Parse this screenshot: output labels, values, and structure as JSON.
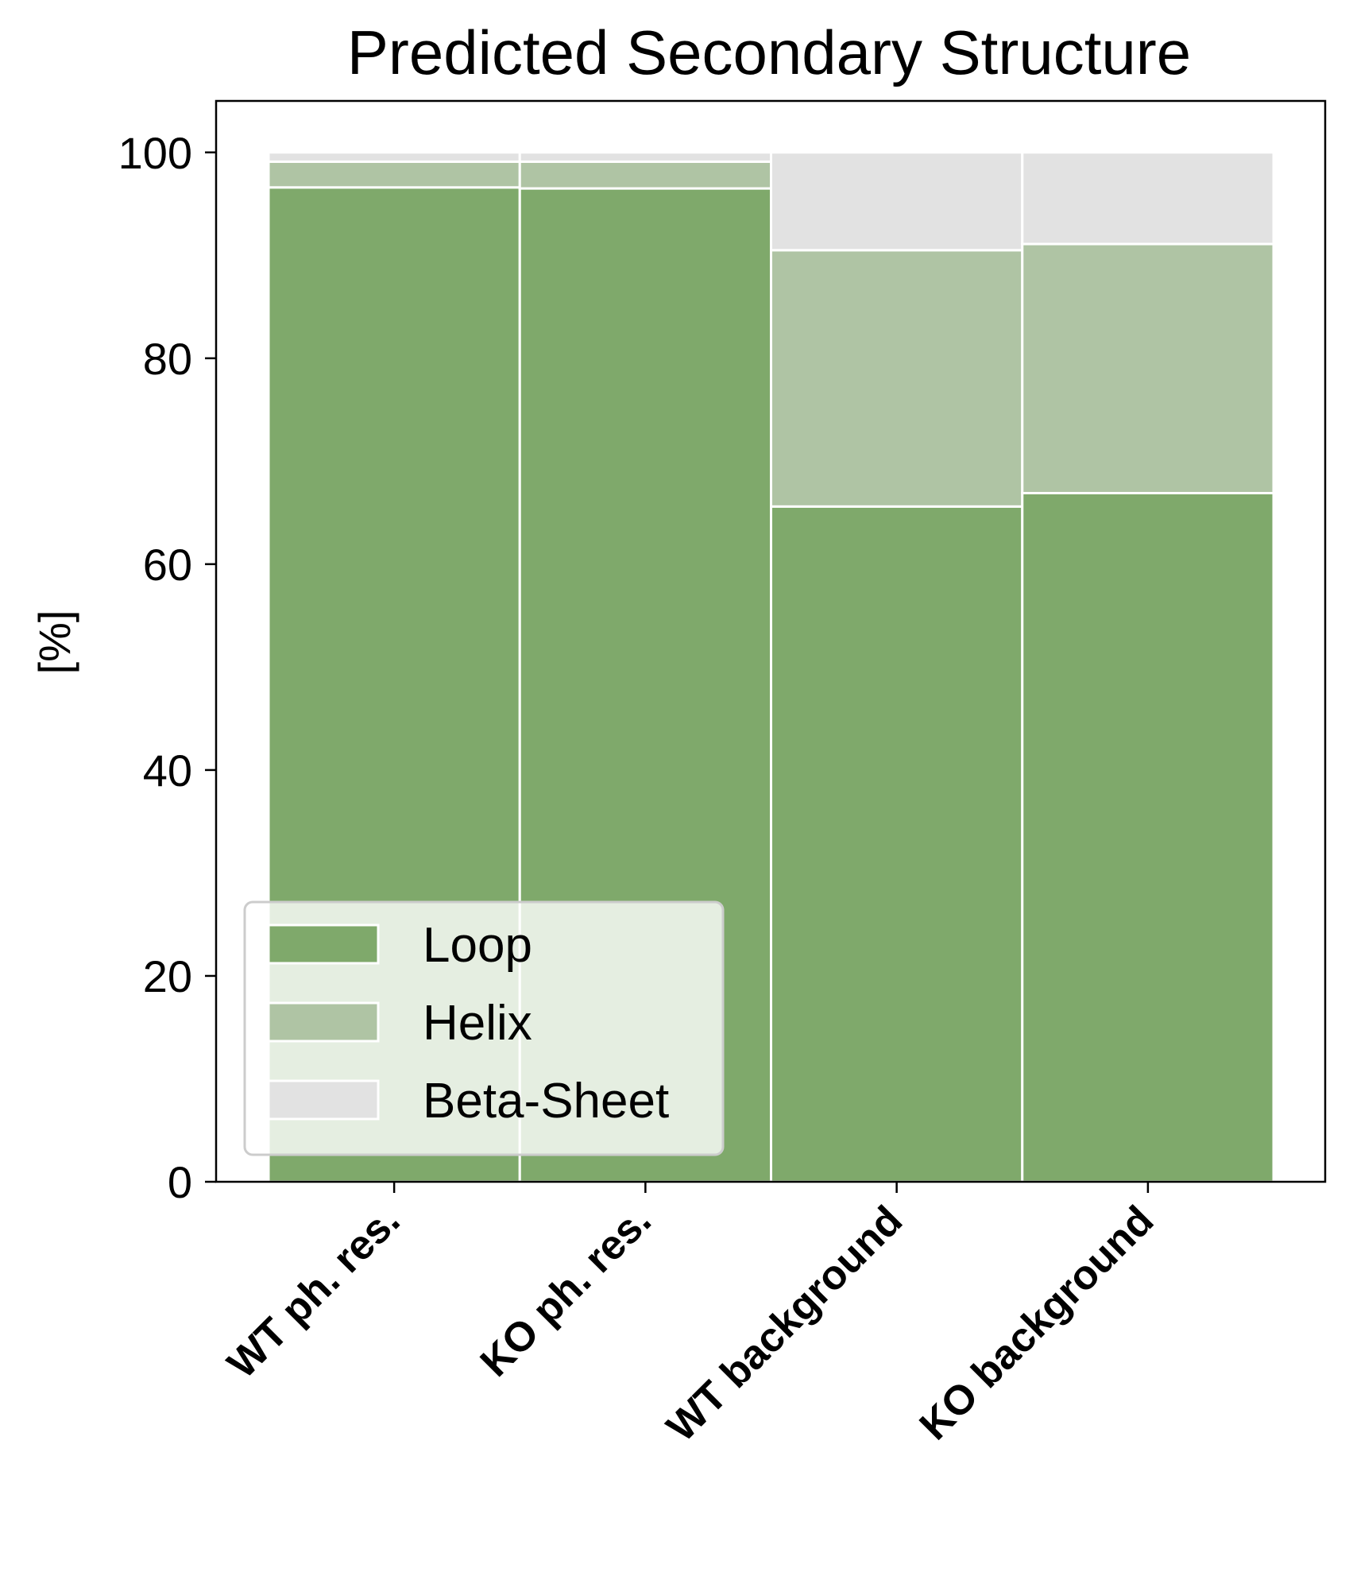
{
  "chart_data": {
    "type": "bar",
    "stacked": true,
    "title": "Predicted Secondary Structure",
    "xlabel": "",
    "ylabel": "[%]",
    "ylim": [
      0,
      105
    ],
    "yticks": [
      0,
      20,
      40,
      60,
      80,
      100
    ],
    "categories": [
      "WT ph. res.",
      "KO ph. res.",
      "WT background",
      "KO background"
    ],
    "series": [
      {
        "name": "Loop",
        "color": "#7fa96b",
        "values": [
          96.6,
          96.5,
          65.6,
          66.9
        ]
      },
      {
        "name": "Helix",
        "color": "#afc4a4",
        "values": [
          2.5,
          2.6,
          24.9,
          24.2
        ]
      },
      {
        "name": "Beta-Sheet",
        "color": "#e2e2e2",
        "values": [
          0.9,
          0.9,
          9.5,
          8.9
        ]
      }
    ],
    "grid": false,
    "legend_position": "lower-left"
  }
}
